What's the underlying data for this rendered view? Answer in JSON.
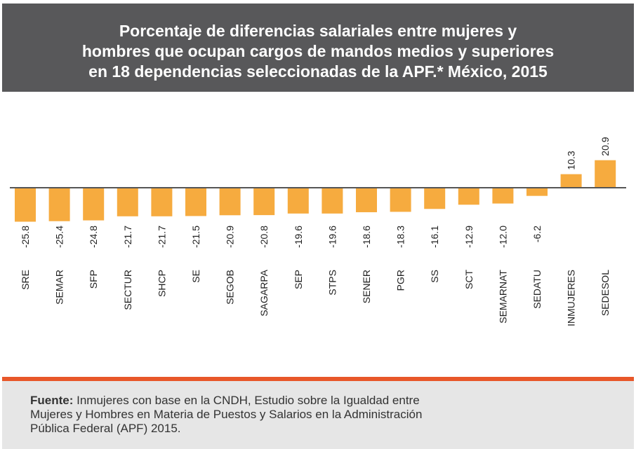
{
  "chart_data": {
    "type": "bar",
    "title_lines": [
      "Porcentaje de diferencias salariales entre mujeres y",
      "hombres que ocupan cargos de mandos medios y superiores",
      "en 18 dependencias seleccionadas de la APF.* México, 2015"
    ],
    "categories": [
      "SRE",
      "SEMAR",
      "SFP",
      "SECTUR",
      "SHCP",
      "SE",
      "SEGOB",
      "SAGARPA",
      "SEP",
      "STPS",
      "SENER",
      "PGR",
      "SS",
      "SCT",
      "SEMARNAT",
      "SEDATU",
      "INMUJERES",
      "SEDESOL"
    ],
    "values": [
      -25.8,
      -25.4,
      -24.8,
      -21.7,
      -21.7,
      -21.5,
      -20.9,
      -20.8,
      -19.6,
      -19.6,
      -18.6,
      -18.3,
      -16.1,
      -12.9,
      -12.0,
      -6.2,
      10.3,
      20.9
    ],
    "value_labels": [
      "-25.8",
      "-25.4",
      "-24.8",
      "-21.7",
      "-21.7",
      "-21.5",
      "-20.9",
      "-20.8",
      "-19.6",
      "-19.6",
      "-18.6",
      "-18.3",
      "-16.1",
      "-12.9",
      "-12.0",
      "-6.2",
      "10.3",
      "20.9"
    ],
    "color": "#f6ab3f"
  },
  "footer": {
    "label": "Fuente:",
    "lines": [
      "Inmujeres con base en la CNDH, Estudio sobre la Igualdad entre",
      "Mujeres y Hombres en Materia de Puestos y Salarios en la Administración",
      "Pública Federal (APF) 2015."
    ]
  }
}
